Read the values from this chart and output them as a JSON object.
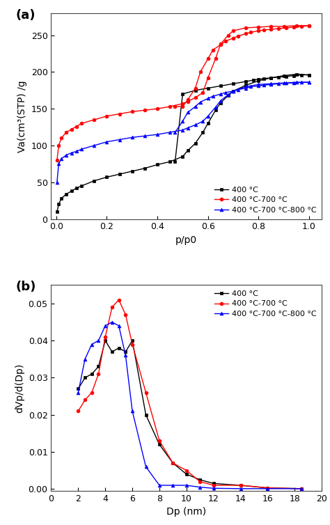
{
  "panel_a": {
    "title": "(a)",
    "xlabel": "p/p0",
    "ylabel": "Va(cm³(STP) /g",
    "xlim": [
      -0.02,
      1.05
    ],
    "ylim": [
      0,
      280
    ],
    "yticks": [
      0,
      50,
      100,
      150,
      200,
      250
    ],
    "xticks": [
      0.0,
      0.2,
      0.4,
      0.6,
      0.8,
      1.0
    ],
    "series": [
      {
        "label": "400 °C",
        "color": "#000000",
        "marker": "s",
        "adsorption": {
          "x": [
            0.003,
            0.01,
            0.02,
            0.04,
            0.06,
            0.08,
            0.1,
            0.15,
            0.2,
            0.25,
            0.3,
            0.35,
            0.4,
            0.45,
            0.5,
            0.52,
            0.55,
            0.58,
            0.6,
            0.63,
            0.65,
            0.68,
            0.7,
            0.75,
            0.8,
            0.85,
            0.9,
            0.95,
            1.0
          ],
          "y": [
            10,
            20,
            28,
            34,
            38,
            42,
            45,
            52,
            57,
            61,
            65,
            69,
            74,
            78,
            85,
            93,
            103,
            118,
            130,
            148,
            158,
            168,
            174,
            182,
            188,
            192,
            195,
            197,
            196
          ]
        },
        "desorption": {
          "x": [
            1.0,
            0.97,
            0.94,
            0.91,
            0.88,
            0.85,
            0.82,
            0.8,
            0.78,
            0.75,
            0.7,
            0.65,
            0.6,
            0.55,
            0.5,
            0.47
          ],
          "y": [
            196,
            196,
            195,
            194,
            193,
            192,
            191,
            190,
            189,
            187,
            184,
            181,
            178,
            175,
            170,
            78
          ]
        }
      },
      {
        "label": "400 °C-700 °C",
        "color": "#ff0000",
        "marker": "o",
        "adsorption": {
          "x": [
            0.003,
            0.01,
            0.02,
            0.04,
            0.06,
            0.08,
            0.1,
            0.15,
            0.2,
            0.25,
            0.3,
            0.35,
            0.4,
            0.45,
            0.5,
            0.52,
            0.55,
            0.58,
            0.6,
            0.63,
            0.65,
            0.68,
            0.7,
            0.75,
            0.8,
            0.85,
            0.9,
            0.95,
            1.0
          ],
          "y": [
            80,
            100,
            110,
            118,
            122,
            126,
            130,
            135,
            140,
            143,
            146,
            148,
            150,
            153,
            157,
            160,
            165,
            172,
            192,
            218,
            238,
            250,
            256,
            260,
            261,
            262,
            262,
            263,
            263
          ]
        },
        "desorption": {
          "x": [
            1.0,
            0.97,
            0.94,
            0.91,
            0.88,
            0.85,
            0.82,
            0.8,
            0.77,
            0.75,
            0.72,
            0.7,
            0.67,
            0.65,
            0.62,
            0.6,
            0.57,
            0.55,
            0.52,
            0.5,
            0.47
          ],
          "y": [
            263,
            262,
            261,
            260,
            259,
            258,
            257,
            256,
            254,
            252,
            249,
            246,
            242,
            237,
            230,
            218,
            200,
            178,
            162,
            153,
            153
          ]
        }
      },
      {
        "label": "400 °C-700 °C-800 °C",
        "color": "#0000ff",
        "marker": "^",
        "adsorption": {
          "x": [
            0.003,
            0.01,
            0.02,
            0.04,
            0.06,
            0.08,
            0.1,
            0.15,
            0.2,
            0.25,
            0.3,
            0.35,
            0.4,
            0.45,
            0.5,
            0.52,
            0.55,
            0.58,
            0.6,
            0.63,
            0.65,
            0.68,
            0.7,
            0.75,
            0.8,
            0.85,
            0.9,
            0.95,
            1.0
          ],
          "y": [
            50,
            75,
            82,
            87,
            90,
            92,
            95,
            100,
            105,
            108,
            111,
            113,
            115,
            118,
            121,
            124,
            128,
            133,
            140,
            152,
            161,
            169,
            174,
            180,
            183,
            184,
            185,
            186,
            186
          ]
        },
        "desorption": {
          "x": [
            1.0,
            0.97,
            0.94,
            0.91,
            0.88,
            0.85,
            0.82,
            0.8,
            0.77,
            0.75,
            0.72,
            0.7,
            0.67,
            0.65,
            0.62,
            0.6,
            0.57,
            0.55,
            0.52,
            0.5,
            0.47
          ],
          "y": [
            186,
            186,
            185,
            185,
            184,
            183,
            182,
            181,
            180,
            178,
            176,
            174,
            172,
            170,
            167,
            164,
            159,
            153,
            145,
            133,
            118
          ]
        }
      }
    ]
  },
  "panel_b": {
    "title": "(b)",
    "xlabel": "Dp (nm)",
    "ylabel": "dVp/d(Dp)",
    "xlim": [
      0,
      20
    ],
    "ylim": [
      -0.0005,
      0.055
    ],
    "yticks": [
      0.0,
      0.01,
      0.02,
      0.03,
      0.04,
      0.05
    ],
    "xticks": [
      0,
      2,
      4,
      6,
      8,
      10,
      12,
      14,
      16,
      18,
      20
    ],
    "series": [
      {
        "label": "400 °C",
        "color": "#000000",
        "marker": "s",
        "x": [
          2.0,
          2.5,
          3.0,
          3.5,
          4.0,
          4.5,
          5.0,
          5.5,
          6.0,
          7.0,
          8.0,
          9.0,
          10.0,
          11.0,
          12.0,
          14.0,
          16.0,
          18.5
        ],
        "y": [
          0.027,
          0.03,
          0.031,
          0.033,
          0.04,
          0.037,
          0.038,
          0.037,
          0.04,
          0.02,
          0.012,
          0.007,
          0.004,
          0.0025,
          0.0015,
          0.001,
          0.0003,
          0.0001
        ]
      },
      {
        "label": "400 °C-700 °C",
        "color": "#ff0000",
        "marker": "o",
        "x": [
          2.0,
          2.5,
          3.0,
          3.5,
          4.0,
          4.5,
          5.0,
          5.5,
          6.0,
          7.0,
          8.0,
          9.0,
          10.0,
          11.0,
          12.0,
          14.0,
          16.0,
          18.5
        ],
        "y": [
          0.021,
          0.024,
          0.026,
          0.031,
          0.041,
          0.049,
          0.051,
          0.047,
          0.039,
          0.026,
          0.013,
          0.007,
          0.005,
          0.002,
          0.001,
          0.001,
          0.0003,
          0.0001
        ]
      },
      {
        "label": "400 °C-700 °C-800 °C",
        "color": "#0000ff",
        "marker": "^",
        "x": [
          2.0,
          2.5,
          3.0,
          3.5,
          4.0,
          4.5,
          5.0,
          5.5,
          6.0,
          7.0,
          8.0,
          9.0,
          10.0,
          11.0,
          12.0,
          14.0,
          16.0,
          18.5
        ],
        "y": [
          0.026,
          0.035,
          0.039,
          0.04,
          0.044,
          0.045,
          0.044,
          0.036,
          0.021,
          0.006,
          0.001,
          0.001,
          0.001,
          0.0005,
          0.0002,
          0.0001,
          0.0001,
          0.0001
        ]
      }
    ]
  },
  "legend_fontsize": 8.0,
  "axis_label_fontsize": 10,
  "tick_fontsize": 9,
  "panel_label_fontsize": 13
}
